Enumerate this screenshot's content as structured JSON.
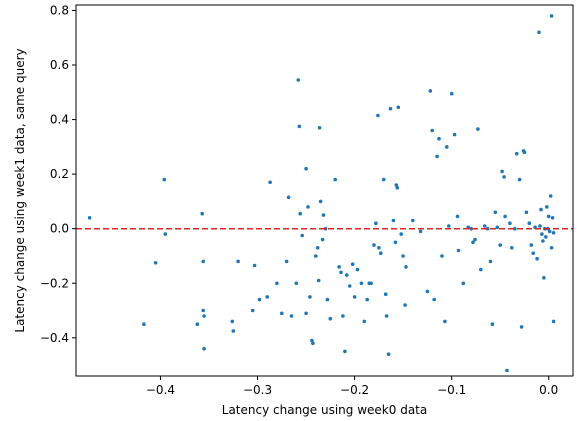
{
  "chart_data": {
    "type": "scatter",
    "title": "",
    "xlabel": "Latency change using week0 data",
    "ylabel": "Latency change using week1 data, same query",
    "xlim": [
      -0.487,
      0.025
    ],
    "ylim": [
      -0.54,
      0.82
    ],
    "xticks": [
      -0.4,
      -0.3,
      -0.2,
      -0.1,
      0.0
    ],
    "xtick_labels": [
      "−0.4",
      "−0.3",
      "−0.2",
      "−0.1",
      "0.0"
    ],
    "yticks": [
      -0.4,
      -0.2,
      0.0,
      0.2,
      0.4,
      0.6,
      0.8
    ],
    "ytick_labels": [
      "−0.4",
      "−0.2",
      "0.0",
      "0.2",
      "0.4",
      "0.6",
      "0.8"
    ],
    "grid": false,
    "legend": "none",
    "marker_color": "#1f77b4",
    "reference_line": {
      "y": 0.0,
      "color": "#d62728",
      "style": "dashed"
    },
    "points": [
      [
        -0.473,
        0.04
      ],
      [
        -0.417,
        -0.35
      ],
      [
        -0.405,
        -0.125
      ],
      [
        -0.396,
        0.18
      ],
      [
        -0.395,
        -0.02
      ],
      [
        -0.362,
        -0.35
      ],
      [
        -0.357,
        0.055
      ],
      [
        -0.356,
        -0.12
      ],
      [
        -0.356,
        -0.3
      ],
      [
        -0.355,
        -0.32
      ],
      [
        -0.355,
        -0.44
      ],
      [
        -0.326,
        -0.34
      ],
      [
        -0.325,
        -0.375
      ],
      [
        -0.32,
        -0.12
      ],
      [
        -0.305,
        -0.3
      ],
      [
        -0.303,
        -0.135
      ],
      [
        -0.298,
        -0.26
      ],
      [
        -0.29,
        -0.25
      ],
      [
        -0.287,
        0.17
      ],
      [
        -0.28,
        -0.2
      ],
      [
        -0.275,
        -0.31
      ],
      [
        -0.27,
        -0.12
      ],
      [
        -0.268,
        0.115
      ],
      [
        -0.265,
        -0.32
      ],
      [
        -0.26,
        -0.2
      ],
      [
        -0.258,
        0.545
      ],
      [
        -0.257,
        0.375
      ],
      [
        -0.256,
        0.055
      ],
      [
        -0.254,
        -0.025
      ],
      [
        -0.25,
        -0.31
      ],
      [
        -0.25,
        0.22
      ],
      [
        -0.248,
        0.08
      ],
      [
        -0.246,
        -0.25
      ],
      [
        -0.244,
        -0.41
      ],
      [
        -0.243,
        -0.42
      ],
      [
        -0.24,
        -0.1
      ],
      [
        -0.238,
        -0.07
      ],
      [
        -0.237,
        -0.19
      ],
      [
        -0.236,
        0.37
      ],
      [
        -0.235,
        0.1
      ],
      [
        -0.233,
        -0.04
      ],
      [
        -0.232,
        0.05
      ],
      [
        -0.23,
        0.0
      ],
      [
        -0.228,
        -0.26
      ],
      [
        -0.225,
        -0.33
      ],
      [
        -0.22,
        0.18
      ],
      [
        -0.216,
        -0.14
      ],
      [
        -0.214,
        -0.16
      ],
      [
        -0.212,
        -0.32
      ],
      [
        -0.21,
        -0.45
      ],
      [
        -0.208,
        -0.17
      ],
      [
        -0.205,
        -0.21
      ],
      [
        -0.202,
        -0.13
      ],
      [
        -0.2,
        -0.25
      ],
      [
        -0.197,
        -0.15
      ],
      [
        -0.193,
        -0.2
      ],
      [
        -0.19,
        -0.34
      ],
      [
        -0.187,
        -0.26
      ],
      [
        -0.185,
        -0.2
      ],
      [
        -0.183,
        -0.2
      ],
      [
        -0.18,
        -0.06
      ],
      [
        -0.178,
        0.02
      ],
      [
        -0.176,
        0.415
      ],
      [
        -0.175,
        -0.07
      ],
      [
        -0.173,
        -0.09
      ],
      [
        -0.17,
        0.18
      ],
      [
        -0.168,
        -0.24
      ],
      [
        -0.167,
        -0.32
      ],
      [
        -0.165,
        -0.46
      ],
      [
        -0.163,
        0.44
      ],
      [
        -0.16,
        0.03
      ],
      [
        -0.158,
        -0.05
      ],
      [
        -0.157,
        0.16
      ],
      [
        -0.156,
        0.15
      ],
      [
        -0.155,
        0.445
      ],
      [
        -0.152,
        -0.02
      ],
      [
        -0.15,
        -0.1
      ],
      [
        -0.148,
        -0.28
      ],
      [
        -0.147,
        -0.14
      ],
      [
        -0.14,
        0.03
      ],
      [
        -0.132,
        -0.01
      ],
      [
        -0.125,
        -0.23
      ],
      [
        -0.122,
        0.505
      ],
      [
        -0.12,
        0.36
      ],
      [
        -0.118,
        -0.26
      ],
      [
        -0.115,
        0.265
      ],
      [
        -0.113,
        0.33
      ],
      [
        -0.11,
        -0.1
      ],
      [
        -0.107,
        -0.34
      ],
      [
        -0.105,
        0.3
      ],
      [
        -0.103,
        0.01
      ],
      [
        -0.1,
        0.495
      ],
      [
        -0.097,
        0.345
      ],
      [
        -0.094,
        0.045
      ],
      [
        -0.093,
        -0.08
      ],
      [
        -0.088,
        -0.2
      ],
      [
        -0.083,
        0.005
      ],
      [
        -0.08,
        0.0
      ],
      [
        -0.078,
        -0.05
      ],
      [
        -0.076,
        -0.04
      ],
      [
        -0.073,
        0.365
      ],
      [
        -0.07,
        -0.15
      ],
      [
        -0.066,
        0.01
      ],
      [
        -0.063,
        0.0
      ],
      [
        -0.06,
        -0.12
      ],
      [
        -0.058,
        -0.35
      ],
      [
        -0.055,
        0.06
      ],
      [
        -0.053,
        0.005
      ],
      [
        -0.05,
        -0.06
      ],
      [
        -0.048,
        0.21
      ],
      [
        -0.046,
        0.19
      ],
      [
        -0.045,
        0.045
      ],
      [
        -0.043,
        -0.52
      ],
      [
        -0.04,
        0.02
      ],
      [
        -0.038,
        -0.07
      ],
      [
        -0.035,
        0.0
      ],
      [
        -0.033,
        0.275
      ],
      [
        -0.03,
        0.18
      ],
      [
        -0.028,
        -0.36
      ],
      [
        -0.026,
        0.285
      ],
      [
        -0.025,
        0.28
      ],
      [
        -0.023,
        0.06
      ],
      [
        -0.02,
        0.02
      ],
      [
        -0.018,
        -0.06
      ],
      [
        -0.016,
        -0.09
      ],
      [
        -0.014,
        0.005
      ],
      [
        -0.012,
        -0.11
      ],
      [
        -0.01,
        0.72
      ],
      [
        -0.009,
        0.01
      ],
      [
        -0.008,
        0.07
      ],
      [
        -0.007,
        -0.02
      ],
      [
        -0.006,
        -0.045
      ],
      [
        -0.005,
        -0.18
      ],
      [
        -0.004,
        0.0
      ],
      [
        -0.003,
        -0.03
      ],
      [
        -0.002,
        0.08
      ],
      [
        -0.001,
        0.0
      ],
      [
        0.0,
        0.045
      ],
      [
        0.001,
        -0.01
      ],
      [
        0.002,
        0.12
      ],
      [
        0.003,
        0.78
      ],
      [
        0.003,
        -0.07
      ],
      [
        0.004,
        0.04
      ],
      [
        0.005,
        -0.34
      ],
      [
        0.005,
        -0.015
      ]
    ]
  }
}
